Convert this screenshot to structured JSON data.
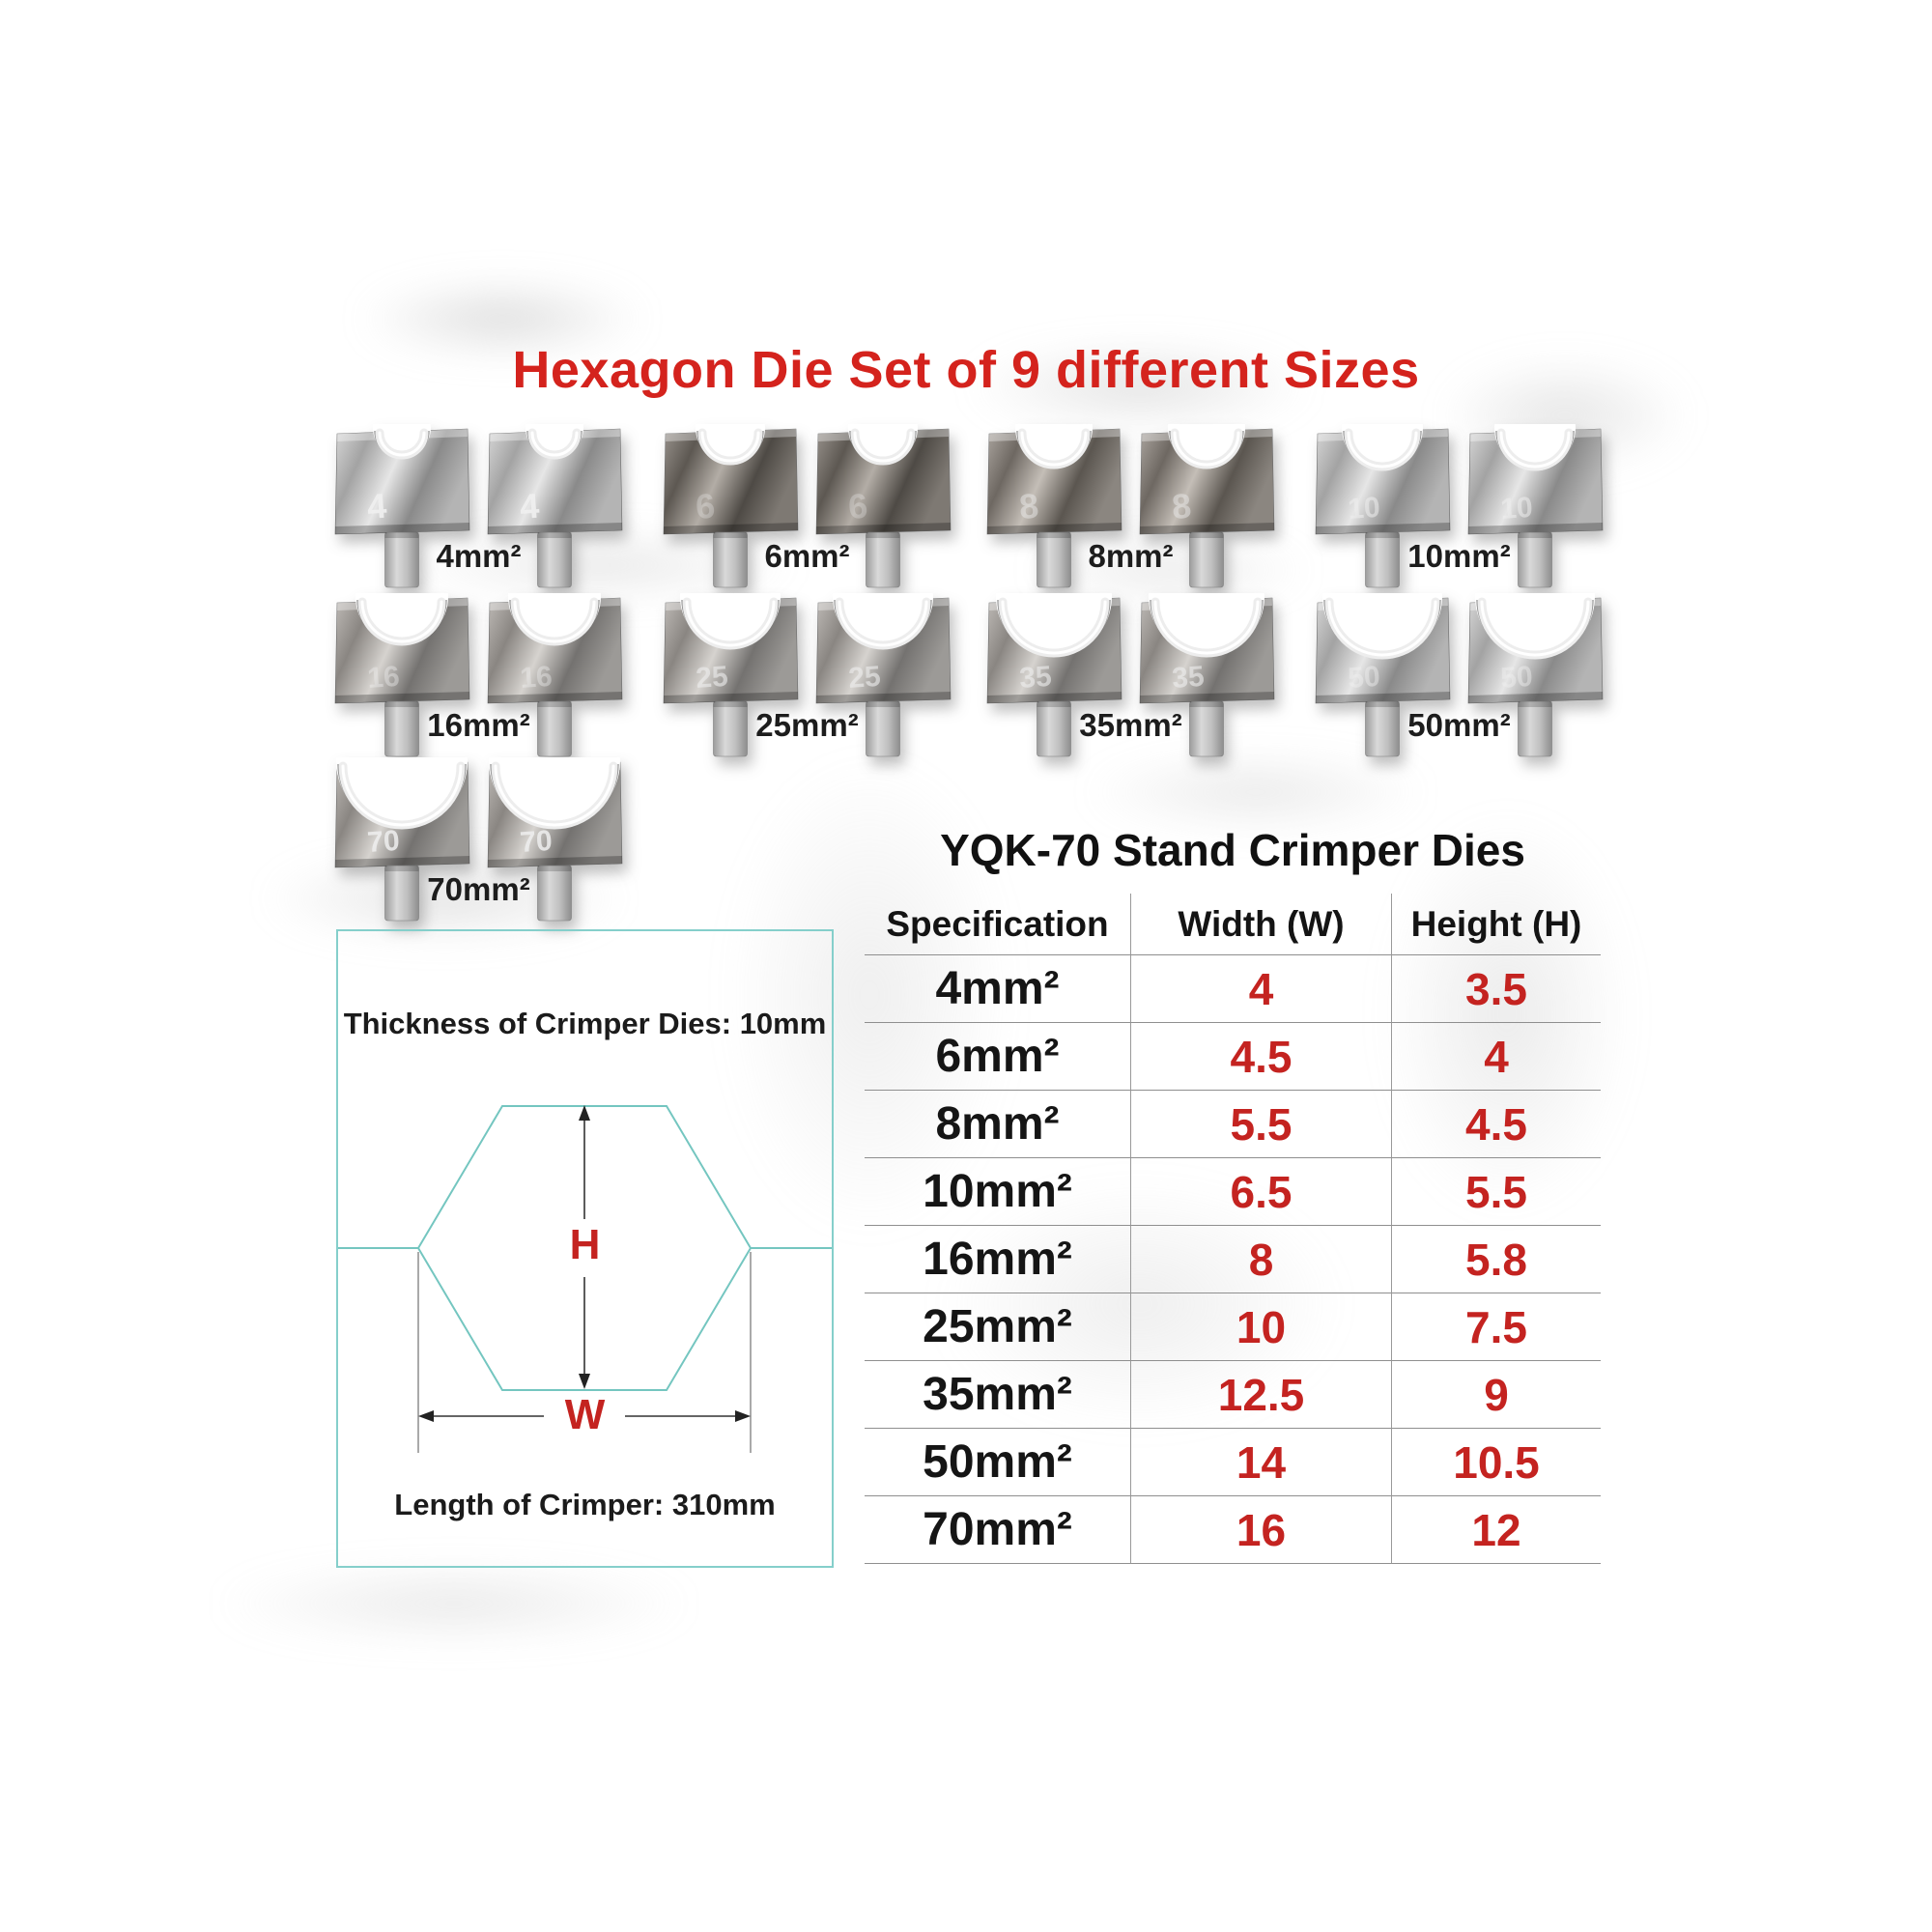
{
  "title": {
    "text": "Hexagon Die Set of 9 different Sizes",
    "color": "#d4231d"
  },
  "die_set": {
    "groups": [
      {
        "label": "4mm²",
        "stamp": "4"
      },
      {
        "label": "6mm²",
        "stamp": "6"
      },
      {
        "label": "8mm²",
        "stamp": "8"
      },
      {
        "label": "10mm²",
        "stamp": "10"
      },
      {
        "label": "16mm²",
        "stamp": "16"
      },
      {
        "label": "25mm²",
        "stamp": "25"
      },
      {
        "label": "35mm²",
        "stamp": "35"
      },
      {
        "label": "50mm²",
        "stamp": "50"
      },
      {
        "label": "70mm²",
        "stamp": "70"
      }
    ]
  },
  "diagram": {
    "thickness_note": "Thickness of Crimper Dies: 10mm",
    "length_note": "Length of Crimper: 310mm",
    "h_label": "H",
    "w_label": "W",
    "line_color": "#74c6c0",
    "label_color": "#c42320"
  },
  "table": {
    "title": "YQK-70 Stand Crimper Dies",
    "headers": [
      "Specification",
      "Width (W)",
      "Height (H)"
    ],
    "rows": [
      [
        "4mm²",
        "4",
        "3.5"
      ],
      [
        "6mm²",
        "4.5",
        "4"
      ],
      [
        "8mm²",
        "5.5",
        "4.5"
      ],
      [
        "10mm²",
        "6.5",
        "5.5"
      ],
      [
        "16mm²",
        "8",
        "5.8"
      ],
      [
        "25mm²",
        "10",
        "7.5"
      ],
      [
        "35mm²",
        "12.5",
        "9"
      ],
      [
        "50mm²",
        "14",
        "10.5"
      ],
      [
        "70mm²",
        "16",
        "12"
      ]
    ],
    "value_color": "#c42320"
  }
}
